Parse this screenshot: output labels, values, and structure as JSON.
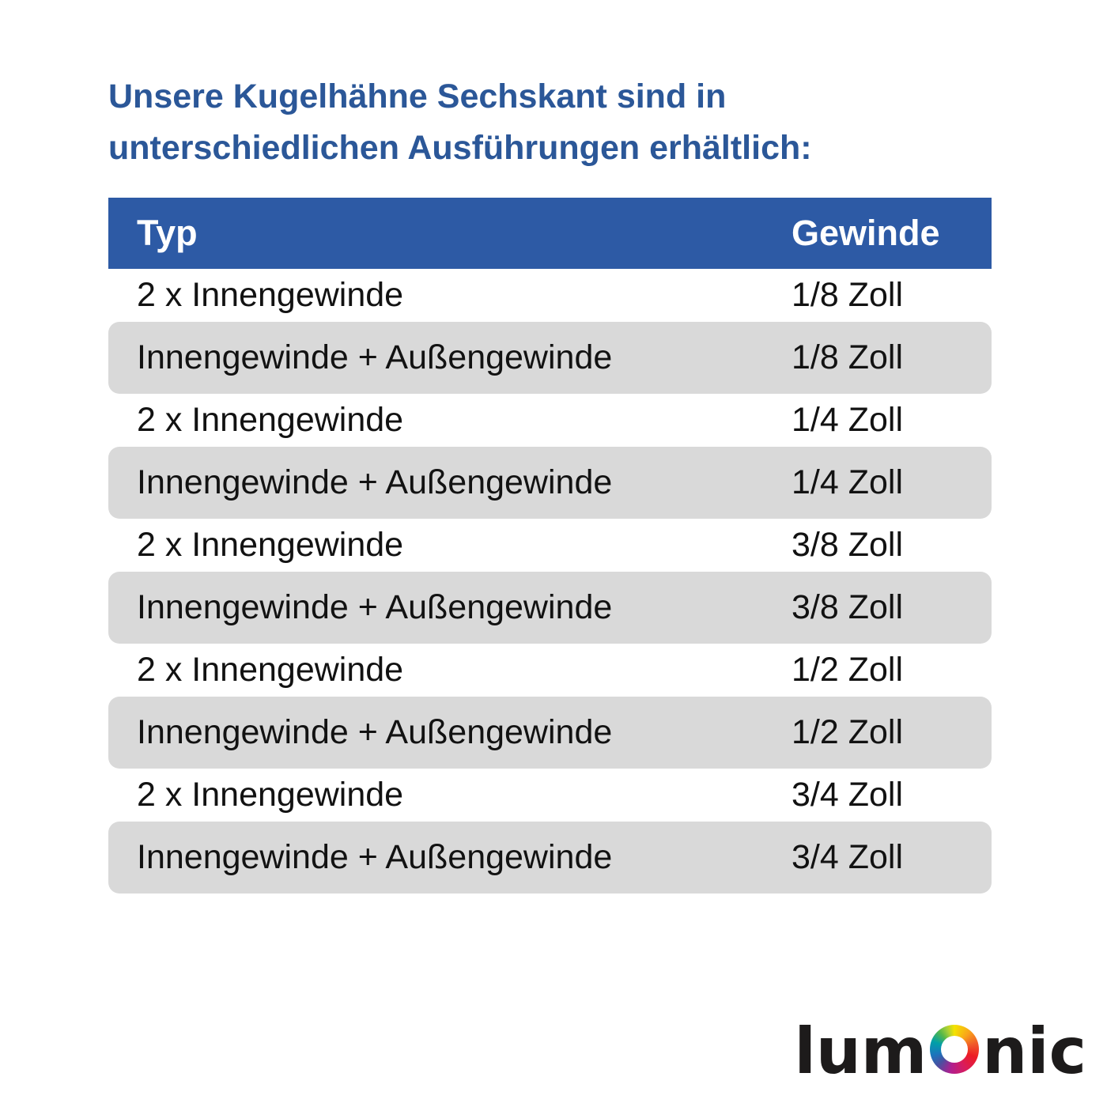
{
  "title": {
    "line1": "Unsere Kugelhähne Sechskant sind in",
    "line2": "unterschiedlichen Ausführungen erhältlich:",
    "color": "#2b5798"
  },
  "table": {
    "headers": {
      "type": "Typ",
      "gewinde": "Gewinde"
    },
    "header_bg_color": "#2d5aa5",
    "header_text_color": "#ffffff",
    "alt_row_bg_color": "#d9d9d9",
    "rows": [
      {
        "type": "2 x Innengewinde",
        "gewinde": "1/8 Zoll"
      },
      {
        "type": "Innengewinde + Außengewinde",
        "gewinde": "1/8 Zoll"
      },
      {
        "type": "2 x Innengewinde",
        "gewinde": "1/4 Zoll"
      },
      {
        "type": "Innengewinde + Außengewinde",
        "gewinde": "1/4 Zoll"
      },
      {
        "type": "2 x Innengewinde",
        "gewinde": "3/8 Zoll"
      },
      {
        "type": "Innengewinde + Außengewinde",
        "gewinde": "3/8 Zoll"
      },
      {
        "type": "2 x Innengewinde",
        "gewinde": "1/2 Zoll"
      },
      {
        "type": "Innengewinde + Außengewinde",
        "gewinde": "1/2 Zoll"
      },
      {
        "type": "2 x Innengewinde",
        "gewinde": "3/4 Zoll"
      },
      {
        "type": "Innengewinde + Außengewinde",
        "gewinde": "3/4 Zoll"
      }
    ]
  },
  "logo": {
    "prefix": "lum",
    "suffix": "nic",
    "o_icon": "rainbow-ring-icon",
    "text_color": "#1d1b1b",
    "ring_colors": [
      "#f4e300",
      "#f9a51a",
      "#f05a28",
      "#ed1c24",
      "#d91c5c",
      "#b01e8f",
      "#4b4fa0",
      "#1b75bc",
      "#00a0a8",
      "#56b849",
      "#a6ce39"
    ]
  }
}
